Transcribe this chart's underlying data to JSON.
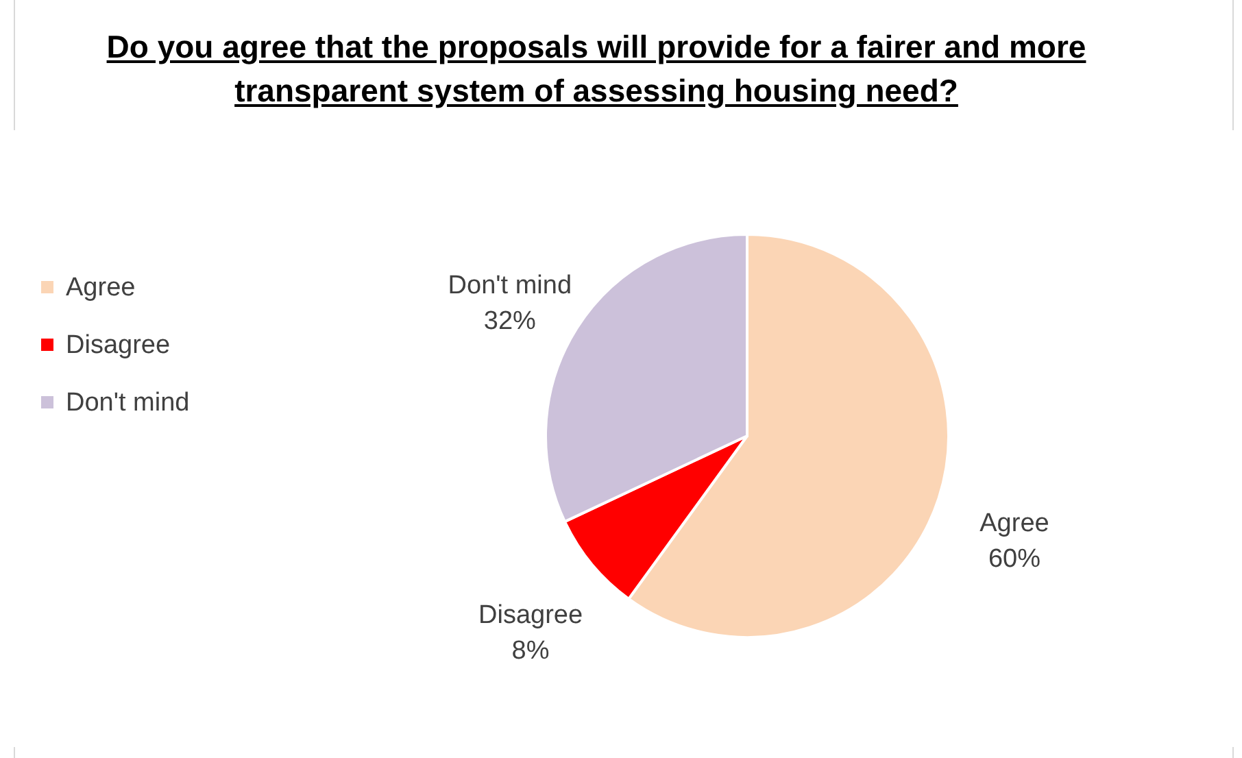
{
  "chart_data": {
    "type": "pie",
    "title": "Do you agree that the proposals will provide for a fairer and more transparent system of assessing housing need?",
    "categories": [
      "Agree",
      "Disagree",
      "Don't mind"
    ],
    "values": [
      60,
      8,
      32
    ],
    "colors": [
      "#fbd5b5",
      "#ff0000",
      "#ccc1da"
    ],
    "value_labels": [
      "60%",
      "8%",
      "32%"
    ],
    "legend": "left"
  }
}
